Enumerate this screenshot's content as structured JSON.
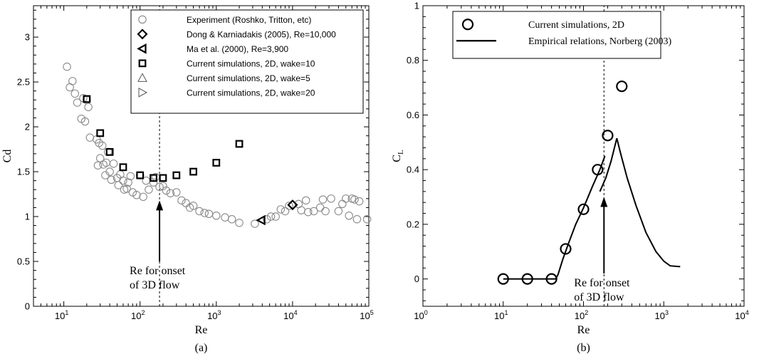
{
  "chart_data": [
    {
      "type": "scatter",
      "caption": "(a)",
      "xlabel": "Re",
      "ylabel": "Cd",
      "xscale": "log",
      "xlim": [
        4,
        100000
      ],
      "ylim": [
        0,
        3.35
      ],
      "xticks": [
        {
          "v": 10,
          "b": "10",
          "e": "1"
        },
        {
          "v": 100,
          "b": "10",
          "e": "2"
        },
        {
          "v": 1000,
          "b": "10",
          "e": "3"
        },
        {
          "v": 10000,
          "b": "10",
          "e": "4"
        },
        {
          "v": 100000,
          "b": "10",
          "e": "5"
        }
      ],
      "yticks": [
        {
          "v": 0,
          "l": "0"
        },
        {
          "v": 0.5,
          "l": "0.5"
        },
        {
          "v": 1,
          "l": "1"
        },
        {
          "v": 1.5,
          "l": "1.5"
        },
        {
          "v": 2,
          "l": "2"
        },
        {
          "v": 2.5,
          "l": "2.5"
        },
        {
          "v": 3,
          "l": "3"
        }
      ],
      "legend_placement": "top-right",
      "vline": 180,
      "annotation": {
        "lines": [
          "Re for onset",
          "of 3D flow"
        ],
        "x": 180,
        "arrow_from_y": 0.5,
        "arrow_to_y": 1.18
      },
      "series": [
        {
          "name": "Experiment (Roshko, Tritton, etc)",
          "marker": "circle",
          "color": "#8a8a8a",
          "points": [
            [
              11,
              2.67
            ],
            [
              12,
              2.44
            ],
            [
              13,
              2.51
            ],
            [
              14,
              2.37
            ],
            [
              15,
              2.27
            ],
            [
              17,
              2.09
            ],
            [
              18,
              2.32
            ],
            [
              19,
              2.06
            ],
            [
              20,
              2.3
            ],
            [
              21,
              2.22
            ],
            [
              22,
              1.88
            ],
            [
              27,
              1.86
            ],
            [
              28,
              1.57
            ],
            [
              29,
              1.82
            ],
            [
              30,
              1.65
            ],
            [
              32,
              1.79
            ],
            [
              33,
              1.58
            ],
            [
              35,
              1.46
            ],
            [
              36,
              1.6
            ],
            [
              38,
              1.72
            ],
            [
              40,
              1.5
            ],
            [
              42,
              1.41
            ],
            [
              45,
              1.59
            ],
            [
              50,
              1.43
            ],
            [
              52,
              1.35
            ],
            [
              55,
              1.47
            ],
            [
              60,
              1.4
            ],
            [
              62,
              1.3
            ],
            [
              67,
              1.31
            ],
            [
              70,
              1.38
            ],
            [
              75,
              1.45
            ],
            [
              80,
              1.27
            ],
            [
              90,
              1.24
            ],
            [
              100,
              1.46
            ],
            [
              110,
              1.22
            ],
            [
              120,
              1.4
            ],
            [
              130,
              1.3
            ],
            [
              150,
              1.38
            ],
            [
              160,
              1.44
            ],
            [
              180,
              1.33
            ],
            [
              200,
              1.34
            ],
            [
              220,
              1.29
            ],
            [
              250,
              1.26
            ],
            [
              300,
              1.27
            ],
            [
              350,
              1.18
            ],
            [
              400,
              1.15
            ],
            [
              450,
              1.1
            ],
            [
              500,
              1.12
            ],
            [
              600,
              1.06
            ],
            [
              700,
              1.04
            ],
            [
              800,
              1.03
            ],
            [
              1000,
              1.01
            ],
            [
              1300,
              0.99
            ],
            [
              1600,
              0.97
            ],
            [
              2000,
              0.93
            ],
            [
              3200,
              0.92
            ],
            [
              4600,
              0.97
            ],
            [
              5200,
              1.0
            ],
            [
              6000,
              1.0
            ],
            [
              7000,
              1.08
            ],
            [
              8000,
              1.06
            ],
            [
              9000,
              1.12
            ],
            [
              12000,
              1.14
            ],
            [
              13000,
              1.07
            ],
            [
              15000,
              1.18
            ],
            [
              16000,
              1.05
            ],
            [
              19000,
              1.06
            ],
            [
              23000,
              1.1
            ],
            [
              25000,
              1.19
            ],
            [
              27000,
              1.06
            ],
            [
              32000,
              1.2
            ],
            [
              40000,
              1.06
            ],
            [
              45000,
              1.14
            ],
            [
              50000,
              1.2
            ],
            [
              55000,
              1.01
            ],
            [
              60000,
              1.2
            ],
            [
              65000,
              1.19
            ],
            [
              70000,
              0.97
            ],
            [
              75000,
              1.17
            ],
            [
              95000,
              0.97
            ]
          ]
        },
        {
          "name": "Dong & Karniadakis (2005), Re=10,000",
          "marker": "diamond",
          "color": "#000000",
          "points": [
            [
              10000,
              1.13
            ]
          ]
        },
        {
          "name": "Ma et al. (2000), Re=3,900",
          "marker": "triangle-left",
          "color": "#000000",
          "points": [
            [
              3900,
              0.96
            ]
          ]
        },
        {
          "name": "Current simulations, 2D, wake=10",
          "marker": "square",
          "color": "#000000",
          "points": [
            [
              20,
              2.31
            ],
            [
              30,
              1.93
            ],
            [
              40,
              1.72
            ],
            [
              60,
              1.55
            ],
            [
              100,
              1.46
            ],
            [
              150,
              1.43
            ],
            [
              200,
              1.43
            ],
            [
              300,
              1.46
            ],
            [
              500,
              1.5
            ],
            [
              1000,
              1.6
            ],
            [
              2000,
              1.81
            ]
          ]
        },
        {
          "name": "Current simulations, 2D, wake=5",
          "marker": "triangle-up",
          "color": "#555555",
          "points": []
        },
        {
          "name": "Current simulations, 2D, wake=20",
          "marker": "triangle-right",
          "color": "#555555",
          "points": []
        }
      ]
    },
    {
      "type": "scatter",
      "caption": "(b)",
      "xlabel": "Re",
      "ylabel": "C",
      "ylabel_sub": "L",
      "xscale": "log",
      "xlim": [
        1,
        10000
      ],
      "ylim": [
        -0.1,
        1.0
      ],
      "xticks": [
        {
          "v": 1,
          "b": "10",
          "e": "0"
        },
        {
          "v": 10,
          "b": "10",
          "e": "1"
        },
        {
          "v": 100,
          "b": "10",
          "e": "2"
        },
        {
          "v": 1000,
          "b": "10",
          "e": "3"
        },
        {
          "v": 10000,
          "b": "10",
          "e": "4"
        }
      ],
      "yticks": [
        {
          "v": 0,
          "l": "0"
        },
        {
          "v": 0.2,
          "l": "0.2"
        },
        {
          "v": 0.4,
          "l": "0.4"
        },
        {
          "v": 0.6,
          "l": "0.6"
        },
        {
          "v": 0.8,
          "l": "0.8"
        },
        {
          "v": 1.0,
          "l": "1"
        }
      ],
      "legend_placement": "top-left",
      "vline": 180,
      "annotation": {
        "lines": [
          "Re for onset",
          "of 3D flow"
        ],
        "x": 180,
        "arrow_from_y": 0.02,
        "arrow_to_y": 0.3
      },
      "series": [
        {
          "name": "Current simulations, 2D",
          "marker": "circle-bold",
          "color": "#000000",
          "points": [
            [
              10,
              0
            ],
            [
              20,
              0
            ],
            [
              40,
              0
            ],
            [
              60,
              0.11
            ],
            [
              100,
              0.255
            ],
            [
              150,
              0.4
            ],
            [
              200,
              0.525
            ],
            [
              300,
              0.705
            ]
          ]
        },
        {
          "name": "Empirical relations, Norberg (2003)",
          "marker": "line",
          "color": "#000000",
          "segments": [
            [
              [
                10,
                0
              ],
              [
                45,
                0
              ],
              [
                48,
                0.015
              ],
              [
                55,
                0.07
              ],
              [
                65,
                0.13
              ],
              [
                80,
                0.2
              ],
              [
                100,
                0.26
              ],
              [
                130,
                0.34
              ],
              [
                160,
                0.4
              ],
              [
                185,
                0.45
              ]
            ],
            [
              [
                160,
                0.32
              ],
              [
                190,
                0.37
              ],
              [
                220,
                0.43
              ],
              [
                260,
                0.515
              ],
              [
                290,
                0.46
              ],
              [
                350,
                0.37
              ],
              [
                450,
                0.27
              ],
              [
                600,
                0.17
              ],
              [
                800,
                0.1
              ],
              [
                1000,
                0.065
              ],
              [
                1200,
                0.048
              ],
              [
                1600,
                0.045
              ]
            ]
          ]
        }
      ]
    }
  ]
}
